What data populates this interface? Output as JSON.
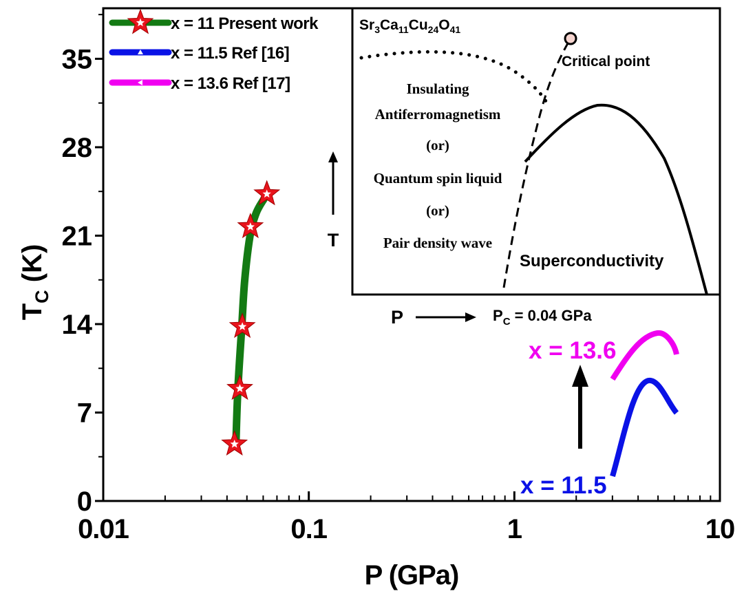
{
  "chart_data": {
    "type": "line",
    "xlabel": "P (GPa)",
    "ylabel_main": "T",
    "ylabel_sub": "C",
    "ylabel_unit": " (K)",
    "x_scale": "log",
    "xlim": [
      0.01,
      10
    ],
    "ylim": [
      0,
      39
    ],
    "x_ticks": [
      {
        "value": 0.01,
        "label": "0.01"
      },
      {
        "value": 0.1,
        "label": "0.1"
      },
      {
        "value": 1,
        "label": "1"
      },
      {
        "value": 10,
        "label": "10"
      }
    ],
    "y_ticks": [
      {
        "value": 0,
        "label": "0"
      },
      {
        "value": 7,
        "label": "7"
      },
      {
        "value": 14,
        "label": "14"
      },
      {
        "value": 21,
        "label": "21"
      },
      {
        "value": 28,
        "label": "28"
      },
      {
        "value": 35,
        "label": "35"
      }
    ],
    "legend_position": "top-left",
    "series": [
      {
        "name": "x = 11 Present work",
        "color": "#137a13",
        "marker": "star",
        "marker_color": "#e8141c",
        "points": [
          [
            0.0435,
            4.5
          ],
          [
            0.0462,
            8.9
          ],
          [
            0.0475,
            13.8
          ],
          [
            0.052,
            21.7
          ],
          [
            0.0625,
            24.3
          ]
        ],
        "curve": [
          [
            0.0442,
            4.5
          ],
          [
            0.0452,
            8.9
          ],
          [
            0.0472,
            13.8
          ],
          [
            0.0488,
            17.5
          ],
          [
            0.0518,
            21.0
          ],
          [
            0.0555,
            22.8
          ],
          [
            0.0605,
            23.9
          ]
        ]
      },
      {
        "name": "x = 11.5 Ref [16]",
        "color": "#0a12e6",
        "marker": "triangle"
      },
      {
        "name": "x = 13.6 Ref [17]",
        "color": "#f000f0",
        "marker": "triangle-left"
      }
    ]
  },
  "inset": {
    "title_parts": [
      {
        "t": "Sr"
      },
      {
        "t": "3",
        "sub": true
      },
      {
        "t": "Ca"
      },
      {
        "t": "11",
        "sub": true
      },
      {
        "t": "Cu"
      },
      {
        "t": "24",
        "sub": true
      },
      {
        "t": "O"
      },
      {
        "t": "41",
        "sub": true
      }
    ],
    "critical_point": "Critical point",
    "phase_lines": [
      "Insulating",
      "Antiferromagnetism",
      "(or)",
      "Quantum spin liquid",
      "(or)",
      "Pair density wave"
    ],
    "superconductivity": "Superconductivity",
    "t_label": "T",
    "p_label": "P",
    "pc_main": "P",
    "pc_sub": "C",
    "pc_value": " = 0.04 GPa"
  },
  "mini_curves": {
    "x136_label": "x = 13.6",
    "x136_color": "#f000f0",
    "x115_label": "x = 11.5",
    "x115_color": "#0a12e6"
  }
}
